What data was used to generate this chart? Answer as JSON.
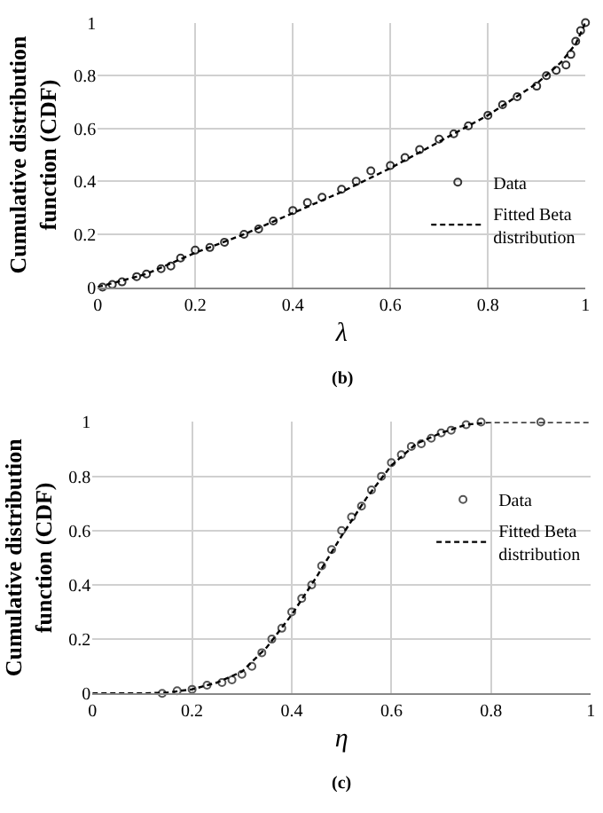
{
  "chart_data": [
    {
      "type": "scatter",
      "xlabel": "λ",
      "ylabel": "Cumulative distribution function (CDF)",
      "annotations": [
        "(b)"
      ],
      "xlim": [
        0,
        1
      ],
      "ylim": [
        0,
        1
      ],
      "xticks": [
        0,
        0.2,
        0.4,
        0.6,
        0.8,
        1
      ],
      "yticks": [
        0,
        0.2,
        0.4,
        0.6,
        0.8,
        1
      ],
      "grid": true,
      "legend": "right",
      "series": [
        {
          "name": "Data",
          "type": "scatter",
          "marker": "circle",
          "color": "#333333",
          "x": [
            0.01,
            0.03,
            0.05,
            0.08,
            0.1,
            0.13,
            0.15,
            0.17,
            0.2,
            0.23,
            0.26,
            0.3,
            0.33,
            0.36,
            0.4,
            0.43,
            0.46,
            0.5,
            0.53,
            0.56,
            0.6,
            0.63,
            0.66,
            0.7,
            0.73,
            0.76,
            0.8,
            0.83,
            0.86,
            0.9,
            0.92,
            0.94,
            0.96,
            0.97,
            0.98,
            0.99,
            1.0
          ],
          "values": [
            0.0,
            0.01,
            0.02,
            0.04,
            0.05,
            0.07,
            0.08,
            0.11,
            0.14,
            0.15,
            0.17,
            0.2,
            0.22,
            0.25,
            0.29,
            0.32,
            0.34,
            0.37,
            0.4,
            0.44,
            0.46,
            0.49,
            0.52,
            0.56,
            0.58,
            0.61,
            0.65,
            0.69,
            0.72,
            0.76,
            0.8,
            0.82,
            0.84,
            0.88,
            0.93,
            0.97,
            1.0
          ]
        },
        {
          "name": "Fitted Beta distribution",
          "type": "line",
          "line_style": "dashed",
          "color": "#000000",
          "x": [
            0,
            0.1,
            0.2,
            0.3,
            0.4,
            0.5,
            0.6,
            0.7,
            0.8,
            0.9,
            0.95,
            0.98,
            1
          ],
          "values": [
            0,
            0.05,
            0.13,
            0.2,
            0.28,
            0.36,
            0.45,
            0.55,
            0.65,
            0.77,
            0.85,
            0.92,
            1
          ]
        }
      ]
    },
    {
      "type": "scatter",
      "xlabel": "η",
      "ylabel": "Cumulative distribution function (CDF)",
      "annotations": [
        "(c)"
      ],
      "xlim": [
        0,
        1
      ],
      "ylim": [
        0,
        1
      ],
      "xticks": [
        0,
        0.2,
        0.4,
        0.6,
        0.8,
        1
      ],
      "yticks": [
        0,
        0.2,
        0.4,
        0.6,
        0.8,
        1
      ],
      "grid": true,
      "legend": "right",
      "series": [
        {
          "name": "Data",
          "type": "scatter",
          "marker": "circle",
          "color": "#555555",
          "x": [
            0.14,
            0.17,
            0.2,
            0.23,
            0.26,
            0.28,
            0.3,
            0.32,
            0.34,
            0.36,
            0.38,
            0.4,
            0.42,
            0.44,
            0.46,
            0.48,
            0.5,
            0.52,
            0.54,
            0.56,
            0.58,
            0.6,
            0.62,
            0.64,
            0.66,
            0.68,
            0.7,
            0.72,
            0.75,
            0.78,
            0.9
          ],
          "values": [
            0.0,
            0.01,
            0.015,
            0.03,
            0.04,
            0.05,
            0.07,
            0.1,
            0.15,
            0.2,
            0.24,
            0.3,
            0.35,
            0.4,
            0.47,
            0.53,
            0.6,
            0.65,
            0.69,
            0.75,
            0.8,
            0.85,
            0.88,
            0.91,
            0.92,
            0.94,
            0.96,
            0.97,
            0.99,
            1.0,
            1.0
          ]
        },
        {
          "name": "Fitted Beta distribution",
          "type": "line",
          "line_style": "dashed",
          "color": "#000000",
          "x": [
            0,
            0.1,
            0.15,
            0.2,
            0.25,
            0.3,
            0.35,
            0.4,
            0.45,
            0.5,
            0.55,
            0.6,
            0.65,
            0.7,
            0.75,
            0.8,
            1
          ],
          "values": [
            0,
            0,
            0.003,
            0.015,
            0.04,
            0.08,
            0.17,
            0.29,
            0.43,
            0.58,
            0.72,
            0.84,
            0.92,
            0.96,
            0.99,
            1.0,
            1
          ]
        }
      ]
    }
  ]
}
